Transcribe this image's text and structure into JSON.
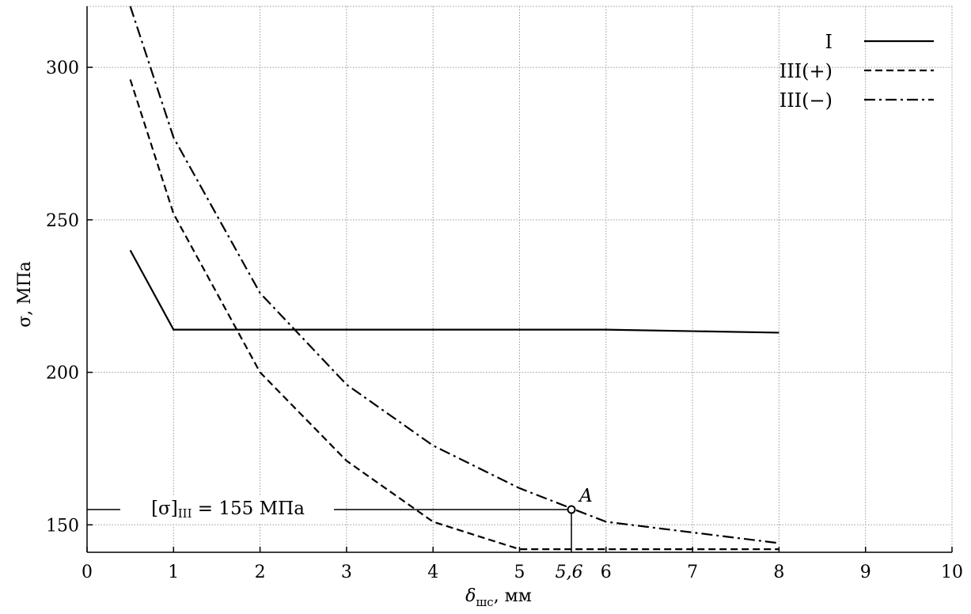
{
  "chart_data": {
    "type": "line",
    "xlabel_main": "δ",
    "xlabel_sub": "шс",
    "xlabel_unit": ", мм",
    "ylabel": "σ, МПа",
    "xlim": [
      0,
      10
    ],
    "ylim": [
      141,
      320
    ],
    "x_ticks": [
      0,
      1,
      2,
      3,
      4,
      5,
      6,
      7,
      8,
      9,
      10
    ],
    "y_ticks": [
      150,
      200,
      250,
      300
    ],
    "grid": true,
    "legend_position": "top-right",
    "series": [
      {
        "name": "I",
        "style": "solid",
        "x": [
          0.5,
          1,
          6,
          8
        ],
        "y": [
          240,
          214,
          214,
          213
        ]
      },
      {
        "name": "III(+)",
        "style": "dashed",
        "x": [
          0.5,
          1,
          2,
          3,
          4,
          5,
          8
        ],
        "y": [
          296,
          252,
          200,
          171,
          151,
          142,
          142
        ]
      },
      {
        "name": "III(−)",
        "style": "dashdot",
        "x": [
          0.5,
          1,
          2,
          3,
          4,
          5,
          6,
          8
        ],
        "y": [
          320,
          277,
          226,
          196,
          176,
          162,
          151,
          144
        ]
      }
    ],
    "annotations": {
      "limit_label_base": "[σ]",
      "limit_label_sub": "III",
      "limit_label_rest": " = 155 МПа",
      "limit_value": 155,
      "point_label": "A",
      "point_x": 5.6,
      "point_y": 155,
      "point_x_label": "5,6"
    }
  }
}
